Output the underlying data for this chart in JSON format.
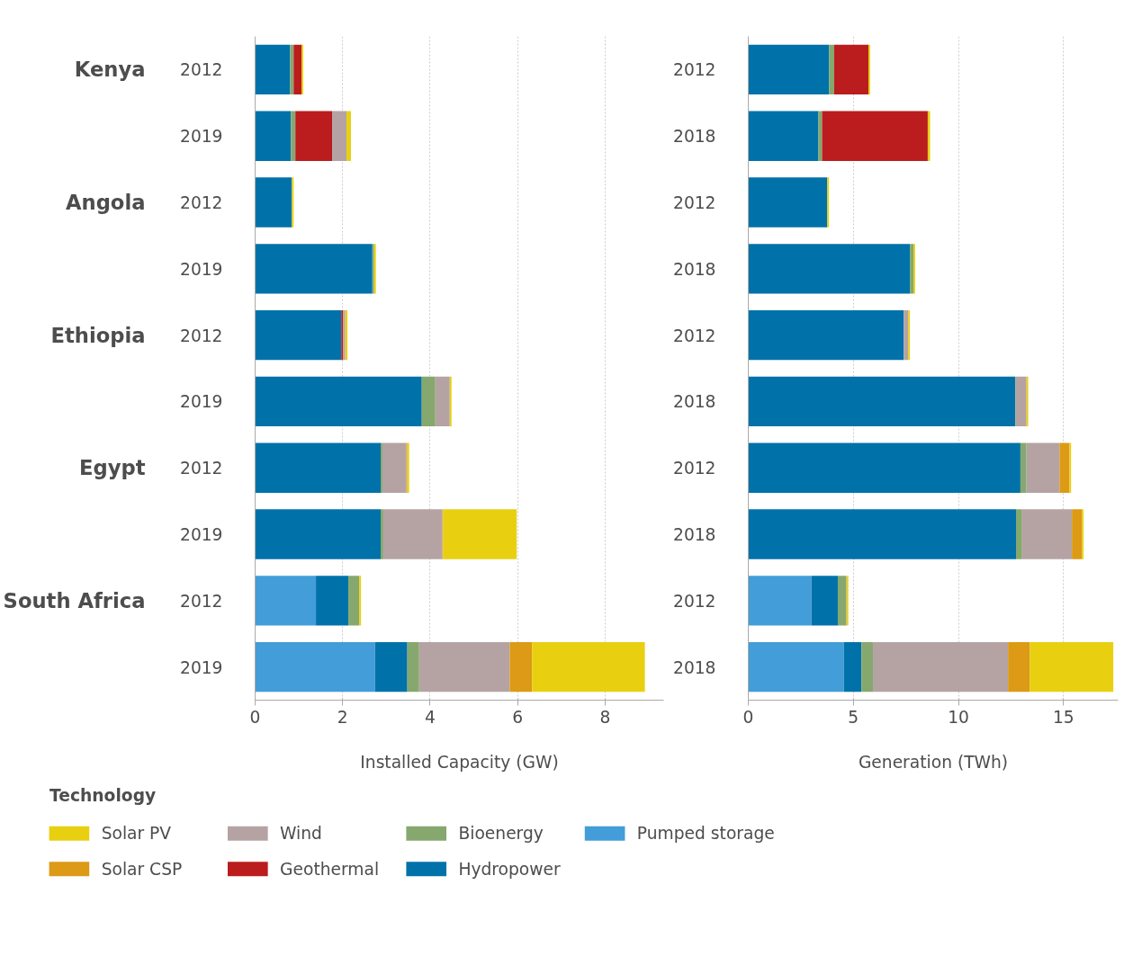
{
  "chart_data": [
    {
      "type": "bar",
      "orientation": "horizontal",
      "stacked": true,
      "categories": [
        "2012",
        "2019",
        "2012",
        "2019",
        "2012",
        "2019",
        "2012",
        "2019",
        "2012",
        "2019"
      ],
      "xlabel": "Installed Capacity (GW)",
      "xlim": [
        0,
        9.34
      ],
      "xticks": [
        0,
        2,
        4,
        6,
        8
      ],
      "grid": "x",
      "legend": "bottom",
      "legend_title": "Technology",
      "annotations": [
        "Kenya",
        "Angola",
        "Ethiopia",
        "Egypt",
        "South Africa"
      ],
      "series": [
        {
          "name": "Pumped storage",
          "color": "#429dd8",
          "values": [
            0,
            0,
            0,
            0,
            0,
            0,
            0,
            0,
            1.39,
            2.74
          ]
        },
        {
          "name": "Hydropower",
          "color": "#0072a9",
          "values": [
            0.8,
            0.82,
            0.84,
            2.68,
            1.97,
            3.81,
            2.87,
            2.87,
            0.74,
            0.74
          ]
        },
        {
          "name": "Bioenergy",
          "color": "#86a86e",
          "values": [
            0.08,
            0.1,
            0,
            0.04,
            0,
            0.31,
            0.04,
            0.06,
            0.25,
            0.27
          ]
        },
        {
          "name": "Geothermal",
          "color": "#bb1c1d",
          "values": [
            0.18,
            0.84,
            0,
            0,
            0.04,
            0,
            0,
            0,
            0,
            0
          ]
        },
        {
          "name": "Wind",
          "color": "#b5a3a4",
          "values": [
            0,
            0.33,
            0,
            0,
            0.05,
            0.33,
            0.55,
            1.35,
            0,
            2.07
          ]
        },
        {
          "name": "Solar CSP",
          "color": "#dc9a16",
          "values": [
            0,
            0,
            0,
            0,
            0,
            0,
            0.02,
            0.02,
            0,
            0.51
          ]
        },
        {
          "name": "Solar PV",
          "color": "#e8d010",
          "values": [
            0.04,
            0.1,
            0.04,
            0.04,
            0.05,
            0.04,
            0.04,
            1.68,
            0.04,
            2.58
          ]
        }
      ]
    },
    {
      "type": "bar",
      "orientation": "horizontal",
      "stacked": true,
      "categories": [
        "2012",
        "2018",
        "2012",
        "2018",
        "2012",
        "2018",
        "2012",
        "2018",
        "2012",
        "2018"
      ],
      "xlabel": "Generation (TWh)",
      "xlim": [
        0,
        17.6
      ],
      "xticks": [
        0,
        5,
        10,
        15
      ],
      "grid": "x",
      "series": [
        {
          "color": "#429dd8",
          "values": [
            0,
            0,
            0,
            0,
            0,
            0,
            0,
            0,
            3.01,
            4.55
          ]
        },
        {
          "color": "#0072a9",
          "values": [
            3.84,
            3.34,
            3.76,
            7.69,
            7.4,
            12.7,
            12.95,
            12.74,
            1.25,
            0.84
          ]
        },
        {
          "color": "#86a86e",
          "values": [
            0.25,
            0.17,
            0,
            0.17,
            0,
            0.03,
            0.29,
            0.29,
            0.39,
            0.54
          ]
        },
        {
          "color": "#bb1c1d",
          "values": [
            1.63,
            5.03,
            0,
            0,
            0,
            0,
            0,
            0,
            0,
            0
          ]
        },
        {
          "color": "#b5a3a4",
          "values": [
            0,
            0,
            0,
            0,
            0.21,
            0.51,
            1.57,
            2.37,
            0.03,
            6.43
          ]
        },
        {
          "color": "#dc9a16",
          "values": [
            0,
            0,
            0,
            0,
            0,
            0,
            0.47,
            0.47,
            0,
            1.04
          ]
        },
        {
          "color": "#e8d010",
          "values": [
            0.08,
            0.11,
            0.08,
            0.08,
            0.08,
            0.08,
            0.08,
            0.08,
            0.08,
            3.97
          ]
        }
      ]
    }
  ]
}
